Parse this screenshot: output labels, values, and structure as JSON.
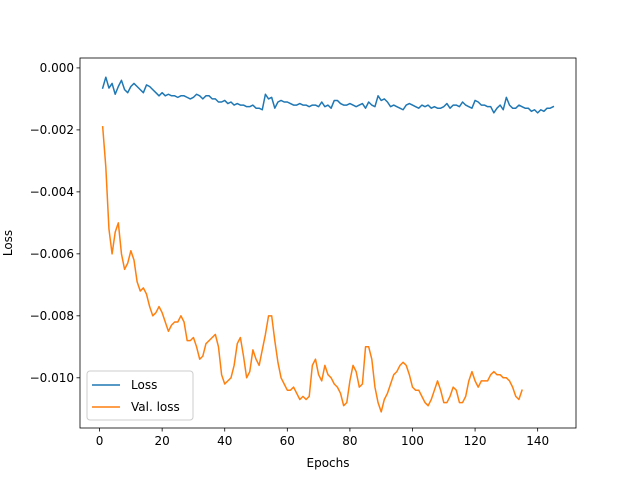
{
  "chart_data": {
    "type": "line",
    "title": "",
    "xlabel": "Epochs",
    "ylabel": "Loss",
    "xlim": [
      -6.25,
      152.25
    ],
    "ylim": [
      -0.01162,
      0.00032
    ],
    "xticks": [
      0,
      20,
      40,
      60,
      80,
      100,
      120,
      140
    ],
    "xtick_labels": [
      "0",
      "20",
      "40",
      "60",
      "80",
      "100",
      "120",
      "140"
    ],
    "yticks": [
      0.0,
      -0.002,
      -0.004,
      -0.006,
      -0.008,
      -0.01
    ],
    "ytick_labels": [
      "0.000",
      "−0.002",
      "−0.004",
      "−0.006",
      "−0.008",
      "−0.010"
    ],
    "grid": false,
    "legend_position": "lower-left",
    "x_start": 1,
    "series": [
      {
        "name": "Loss",
        "color": "#1f77b4",
        "values": [
          -0.00065,
          -0.0003,
          -0.00065,
          -0.0005,
          -0.00085,
          -0.0006,
          -0.0004,
          -0.0007,
          -0.0008,
          -0.0006,
          -0.0005,
          -0.0006,
          -0.0007,
          -0.0008,
          -0.00055,
          -0.0006,
          -0.0007,
          -0.0008,
          -0.0009,
          -0.0008,
          -0.0009,
          -0.00085,
          -0.0009,
          -0.0009,
          -0.00095,
          -0.0009,
          -0.0009,
          -0.00095,
          -0.001,
          -0.00095,
          -0.00085,
          -0.0009,
          -0.001,
          -0.0009,
          -0.0009,
          -0.001,
          -0.001,
          -0.0011,
          -0.0011,
          -0.00105,
          -0.00115,
          -0.0011,
          -0.0012,
          -0.00115,
          -0.0012,
          -0.0012,
          -0.00125,
          -0.00125,
          -0.0012,
          -0.0013,
          -0.0013,
          -0.00135,
          -0.00085,
          -0.001,
          -0.00095,
          -0.0013,
          -0.0011,
          -0.00105,
          -0.0011,
          -0.0011,
          -0.00115,
          -0.0012,
          -0.0012,
          -0.00115,
          -0.0012,
          -0.0012,
          -0.00125,
          -0.0012,
          -0.0012,
          -0.00125,
          -0.0011,
          -0.00125,
          -0.0012,
          -0.0013,
          -0.00105,
          -0.00105,
          -0.00115,
          -0.0012,
          -0.0012,
          -0.00115,
          -0.0012,
          -0.00125,
          -0.0012,
          -0.00115,
          -0.0013,
          -0.0011,
          -0.0012,
          -0.00125,
          -0.0009,
          -0.00105,
          -0.001,
          -0.0011,
          -0.00125,
          -0.0012,
          -0.00125,
          -0.0013,
          -0.00135,
          -0.0012,
          -0.00115,
          -0.0012,
          -0.00125,
          -0.0013,
          -0.0012,
          -0.00125,
          -0.0012,
          -0.0013,
          -0.00125,
          -0.0013,
          -0.0013,
          -0.00125,
          -0.00115,
          -0.0013,
          -0.0012,
          -0.0012,
          -0.00125,
          -0.0011,
          -0.0012,
          -0.00125,
          -0.0013,
          -0.00105,
          -0.0011,
          -0.0012,
          -0.0012,
          -0.00125,
          -0.00125,
          -0.00145,
          -0.0013,
          -0.0012,
          -0.00135,
          -0.00095,
          -0.0012,
          -0.0013,
          -0.0013,
          -0.0012,
          -0.00125,
          -0.0013,
          -0.0013,
          -0.0014,
          -0.00135,
          -0.00145,
          -0.00135,
          -0.0014,
          -0.0013,
          -0.0013,
          -0.00125
        ]
      },
      {
        "name": "Val. loss",
        "color": "#ff7f0e",
        "values": [
          -0.0019,
          -0.0032,
          -0.0052,
          -0.006,
          -0.0053,
          -0.005,
          -0.006,
          -0.0065,
          -0.0063,
          -0.0059,
          -0.0062,
          -0.0069,
          -0.0072,
          -0.0071,
          -0.0073,
          -0.0077,
          -0.008,
          -0.0079,
          -0.0077,
          -0.0079,
          -0.0082,
          -0.0085,
          -0.0083,
          -0.0082,
          -0.0082,
          -0.008,
          -0.0082,
          -0.0088,
          -0.0088,
          -0.0087,
          -0.009,
          -0.0094,
          -0.0093,
          -0.0089,
          -0.0088,
          -0.0087,
          -0.0086,
          -0.009,
          -0.0099,
          -0.0102,
          -0.0101,
          -0.01,
          -0.0096,
          -0.0089,
          -0.0087,
          -0.0093,
          -0.01,
          -0.0098,
          -0.0091,
          -0.0094,
          -0.0096,
          -0.0091,
          -0.0086,
          -0.008,
          -0.008,
          -0.0088,
          -0.0095,
          -0.01,
          -0.0102,
          -0.0104,
          -0.0104,
          -0.0103,
          -0.0105,
          -0.0107,
          -0.0106,
          -0.0107,
          -0.0106,
          -0.0096,
          -0.0094,
          -0.0099,
          -0.0101,
          -0.0096,
          -0.0099,
          -0.01,
          -0.0102,
          -0.0103,
          -0.0105,
          -0.0109,
          -0.0108,
          -0.0101,
          -0.0096,
          -0.0098,
          -0.0103,
          -0.0102,
          -0.009,
          -0.009,
          -0.0094,
          -0.0103,
          -0.0108,
          -0.0111,
          -0.0107,
          -0.0105,
          -0.0102,
          -0.0099,
          -0.0098,
          -0.0096,
          -0.0095,
          -0.0096,
          -0.0099,
          -0.0103,
          -0.0104,
          -0.0104,
          -0.0106,
          -0.0108,
          -0.0109,
          -0.0107,
          -0.0104,
          -0.0101,
          -0.0104,
          -0.0108,
          -0.0108,
          -0.0106,
          -0.0103,
          -0.0104,
          -0.0108,
          -0.0108,
          -0.0106,
          -0.0101,
          -0.0098,
          -0.0101,
          -0.0103,
          -0.0101,
          -0.0101,
          -0.0101,
          -0.0099,
          -0.0098,
          -0.0099,
          -0.0099,
          -0.01,
          -0.01,
          -0.0101,
          -0.0103,
          -0.0106,
          -0.0107,
          -0.0104
        ]
      }
    ]
  }
}
